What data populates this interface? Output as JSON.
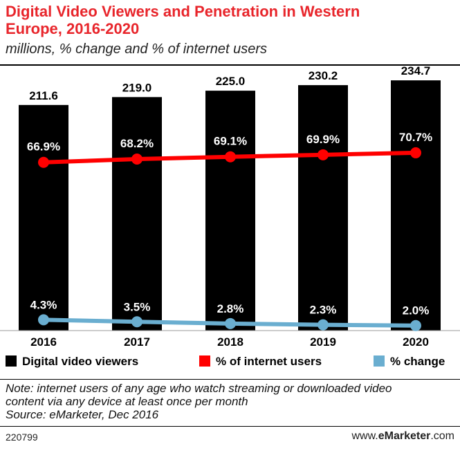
{
  "title_line1": "Digital Video Viewers and Penetration in Western",
  "title_line2": "Europe, 2016-2020",
  "subtitle": "millions, % change and % of internet users",
  "chart_data": {
    "type": "bar",
    "categories": [
      "2016",
      "2017",
      "2018",
      "2019",
      "2020"
    ],
    "series": [
      {
        "name": "Digital video viewers",
        "kind": "bar",
        "color": "#000000",
        "values": [
          211.6,
          219.0,
          225.0,
          230.2,
          234.7
        ],
        "labels": [
          "211.6",
          "219.0",
          "225.0",
          "230.2",
          "234.7"
        ]
      },
      {
        "name": "% of internet users",
        "kind": "line",
        "color": "#ff0000",
        "values": [
          66.9,
          68.2,
          69.1,
          69.9,
          70.7
        ],
        "labels": [
          "66.9%",
          "68.2%",
          "69.1%",
          "69.9%",
          "70.7%"
        ]
      },
      {
        "name": "% change",
        "kind": "line",
        "color": "#6aaed0",
        "values": [
          4.3,
          3.5,
          2.8,
          2.3,
          2.0
        ],
        "labels": [
          "4.3%",
          "3.5%",
          "2.8%",
          "2.3%",
          "2.0%"
        ]
      }
    ],
    "bar_ylim": [
      0,
      240
    ],
    "pct_ylim": [
      0,
      110
    ]
  },
  "note_lines": [
    "Note: internet users of any age who watch streaming or downloaded video",
    "content via any device at least once per month",
    "Source: eMarketer, Dec 2016"
  ],
  "footer_id": "220799",
  "footer_brand_prefix": "www.",
  "footer_brand_name": "eMarketer",
  "footer_brand_suffix": ".com"
}
